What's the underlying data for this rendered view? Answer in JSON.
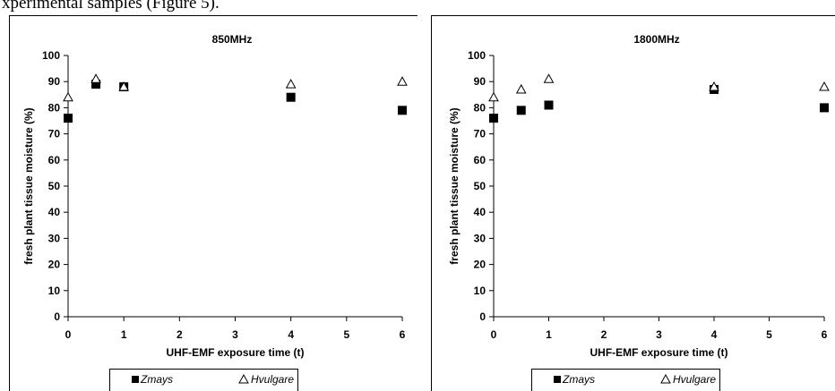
{
  "document": {
    "caption_fragment": "xperimental samples (Figure 5)."
  },
  "chart_data": [
    {
      "type": "scatter",
      "title": "850MHz",
      "xlabel": "UHF-EMF exposure time (t)",
      "ylabel": "fresh plant tissue moisture (%)",
      "xlim": [
        0,
        6
      ],
      "ylim": [
        0,
        100
      ],
      "xticks": [
        0,
        1,
        2,
        3,
        4,
        5,
        6
      ],
      "yticks": [
        0,
        10,
        20,
        30,
        40,
        50,
        60,
        70,
        80,
        90,
        100
      ],
      "grid": false,
      "legend_position": "bottom",
      "series": [
        {
          "name": "Zmays",
          "marker": "filled-square",
          "color": "#000000",
          "x": [
            0,
            0.5,
            1,
            4,
            6
          ],
          "y": [
            76,
            89,
            88,
            84,
            79
          ]
        },
        {
          "name": "Hvulgare",
          "marker": "open-triangle",
          "color": "#000000",
          "x": [
            0,
            0.5,
            1,
            4,
            6
          ],
          "y": [
            84,
            91,
            88,
            89,
            90
          ]
        }
      ]
    },
    {
      "type": "scatter",
      "title": "1800MHz",
      "xlabel": "UHF-EMF exposure time (t)",
      "ylabel": "fresh plant tissue moisture (%)",
      "xlim": [
        0,
        6
      ],
      "ylim": [
        0,
        100
      ],
      "xticks": [
        0,
        1,
        2,
        3,
        4,
        5,
        6
      ],
      "yticks": [
        0,
        10,
        20,
        30,
        40,
        50,
        60,
        70,
        80,
        90,
        100
      ],
      "grid": false,
      "legend_position": "bottom",
      "series": [
        {
          "name": "Zmays",
          "marker": "filled-square",
          "color": "#000000",
          "x": [
            0,
            0.5,
            1,
            4,
            6
          ],
          "y": [
            76,
            79,
            81,
            87,
            80
          ]
        },
        {
          "name": "Hvulgare",
          "marker": "open-triangle",
          "color": "#000000",
          "x": [
            0,
            0.5,
            1,
            4,
            6
          ],
          "y": [
            84,
            87,
            91,
            88,
            88
          ]
        }
      ]
    }
  ]
}
